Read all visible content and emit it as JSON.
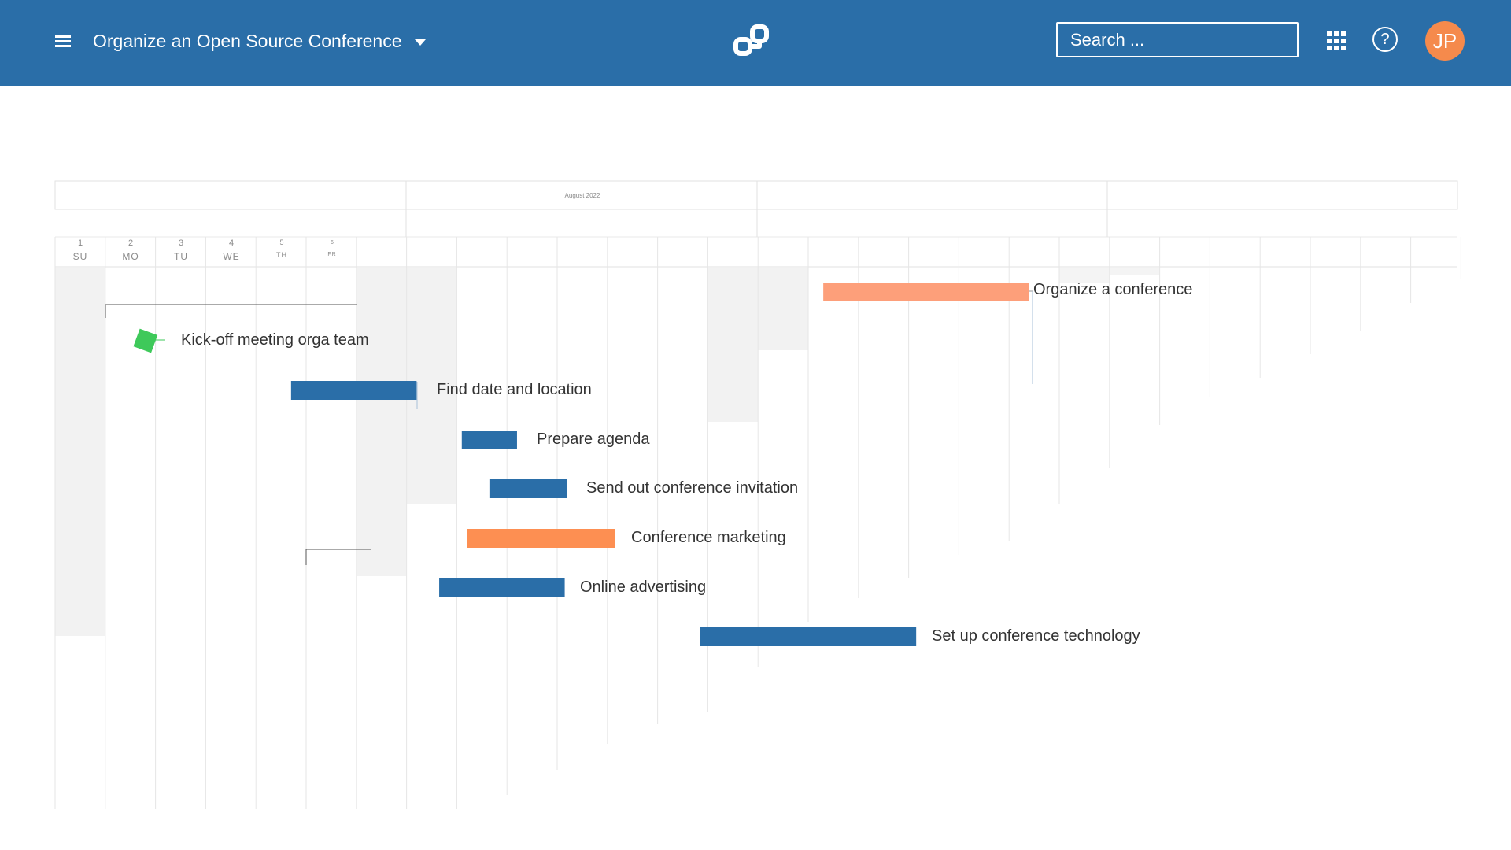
{
  "header": {
    "menu_icon": "hamburger-icon",
    "project_title": "Organize an Open Source Conference",
    "dropdown_icon": "caret-down-icon",
    "logo_icon": "openproject-logo-icon",
    "search_placeholder": "Search ...",
    "apps_icon": "grid-icon",
    "help_icon": "question-icon",
    "help_label": "?",
    "avatar_initials": "JP",
    "avatar_color": "#f58a4c",
    "bar_color": "#2a6ea8"
  },
  "timeline": {
    "month_label": "August 2022",
    "days": [
      {
        "num": "1",
        "name": "SU"
      },
      {
        "num": "2",
        "name": "MO"
      },
      {
        "num": "3",
        "name": "TU"
      },
      {
        "num": "4",
        "name": "WE"
      },
      {
        "num": "5",
        "name": "TH"
      },
      {
        "num": "6",
        "name": "FR"
      }
    ]
  },
  "tasks": [
    {
      "label": "Organize a conference",
      "type": "bar",
      "color": "#fd9f7a",
      "start_col": 15.3,
      "end_col": 19.4
    },
    {
      "label": "Kick-off meeting orga team",
      "type": "milestone",
      "color": "#3ec95a",
      "start_col": 1.8,
      "end_col": 1.8
    },
    {
      "label": "Find date and location",
      "type": "bar",
      "color": "#2a6ea8",
      "start_col": 4.7,
      "end_col": 7.2
    },
    {
      "label": "Prepare agenda",
      "type": "bar",
      "color": "#2a6ea8",
      "start_col": 8.1,
      "end_col": 9.2
    },
    {
      "label": "Send out conference invitation",
      "type": "bar",
      "color": "#2a6ea8",
      "start_col": 8.65,
      "end_col": 10.2
    },
    {
      "label": "Conference marketing",
      "type": "bar",
      "color": "#fd8f52",
      "start_col": 8.2,
      "end_col": 11.15
    },
    {
      "label": "Online advertising",
      "type": "bar",
      "color": "#2a6ea8",
      "start_col": 7.65,
      "end_col": 10.15
    },
    {
      "label": "Set up conference technology",
      "type": "bar",
      "color": "#2a6ea8",
      "start_col": 12.85,
      "end_col": 17.15
    }
  ]
}
